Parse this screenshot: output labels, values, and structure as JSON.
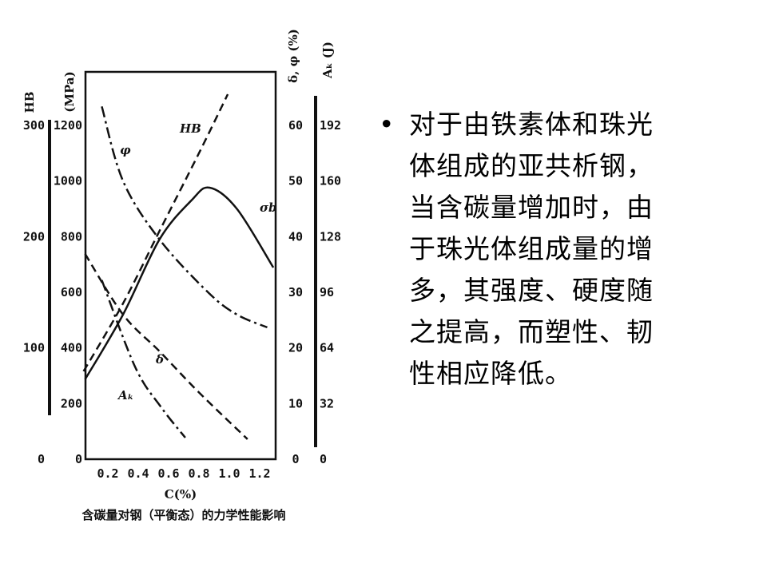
{
  "chart_data": {
    "type": "line",
    "title": "",
    "caption": "含碳量对钢（平衡态）的力学性能影响",
    "xlabel": "C(%)",
    "x_ticks": [
      "0.2",
      "0.4",
      "0.6",
      "0.8",
      "1.0",
      "1.2"
    ],
    "axes": {
      "hb": {
        "label": "HB",
        "range": [
          0,
          300
        ],
        "ticks": [
          "0",
          "100",
          "200",
          "300"
        ]
      },
      "mpa": {
        "label": "(MPa)",
        "range": [
          0,
          1200
        ],
        "ticks": [
          "0",
          "200",
          "400",
          "600",
          "800",
          "1000",
          "1200"
        ]
      },
      "delta_phi": {
        "label": "δ, φ (%)",
        "range": [
          0,
          60
        ],
        "ticks": [
          "0",
          "10",
          "20",
          "30",
          "40",
          "50",
          "60"
        ]
      },
      "ak": {
        "label": "Aₖ (J)",
        "range": [
          0,
          192
        ],
        "ticks": [
          "0",
          "32",
          "64",
          "96",
          "128",
          "160",
          "192"
        ]
      }
    },
    "series": [
      {
        "name": "σb",
        "axis": "mpa",
        "style": "solid",
        "x": [
          0.05,
          0.3,
          0.54,
          0.75,
          0.87,
          1.05,
          1.29
        ],
        "y": [
          287,
          520,
          790,
          930,
          976,
          900,
          689
        ]
      },
      {
        "name": "HB",
        "axis": "hb",
        "style": "dashed",
        "x": [
          0.04,
          0.3,
          0.54,
          0.8,
          0.99
        ],
        "y": [
          79,
          140,
          205,
          275,
          328
        ]
      },
      {
        "name": "φ",
        "axis": "delta_phi",
        "style": "dashdot",
        "x": [
          0.16,
          0.3,
          0.54,
          0.86,
          1.05,
          1.25
        ],
        "y": [
          63.4,
          50,
          39.5,
          30,
          26,
          23.7
        ]
      },
      {
        "name": "δ",
        "axis": "delta_phi",
        "style": "dashed",
        "x": [
          0.05,
          0.3,
          0.54,
          0.8,
          1.12
        ],
        "y": [
          36.9,
          26,
          19.4,
          12,
          3.6
        ]
      },
      {
        "name": "Aₖ",
        "axis": "ak",
        "style": "dashdot",
        "x": [
          0.16,
          0.38,
          0.55,
          0.71
        ],
        "y": [
          103,
          53,
          30,
          12.4
        ]
      }
    ],
    "xlim": [
      0,
      1.3
    ]
  },
  "bullet": {
    "marker": "•",
    "lines": [
      "对于由铁素体和珠光",
      "体组成的亚共析钢，",
      "当含碳量增加时，由",
      "于珠光体组成量的增",
      "多，其强度、硬度随",
      "之提高，而塑性、韧",
      "性相应降低。"
    ]
  }
}
